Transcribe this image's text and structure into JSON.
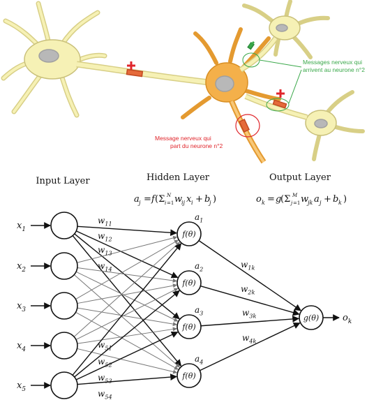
{
  "neuron_panel": {
    "annotation_green_line1": "Messages nerveux qui",
    "annotation_green_line2": "arrivent au neurone n°2",
    "annotation_red_line1": "Message nerveux qui",
    "annotation_red_line2": "part du neurone n°2",
    "colors": {
      "cell_fill": "#f6f1b5",
      "cell_stroke": "#c9c07a",
      "nucleus": "#b8b8b8",
      "soma2": "#f4b04a",
      "axon_band": "#e56a3a",
      "green": "#3aa84a",
      "red": "#e0252b"
    }
  },
  "network": {
    "layer_labels": {
      "input": "Input Layer",
      "hidden": "Hidden Layer",
      "output": "Output Layer"
    },
    "formulas": {
      "hidden": "a_j = f(Σ_{i=1}^{N} w_ij x_i + b_j)",
      "output": "o_k = g(Σ_{j=1}^{M} w_jk a_j + b_k)"
    },
    "inputs": [
      "x1",
      "x2",
      "x3",
      "x4",
      "x5"
    ],
    "hidden_nodes": [
      {
        "func": "f(θ)",
        "act": "a1"
      },
      {
        "func": "f(θ)",
        "act": "a2"
      },
      {
        "func": "f(θ)",
        "act": "a3"
      },
      {
        "func": "f(θ)",
        "act": "a4"
      }
    ],
    "output_node": {
      "func": "g(θ)",
      "label": "ok"
    },
    "input_weights_top": [
      "w11",
      "w12",
      "w13",
      "w14"
    ],
    "input_weights_bottom": [
      "w51",
      "w52",
      "w53",
      "w54"
    ],
    "hidden_weights": [
      "w1k",
      "w2k",
      "w3k",
      "w4k"
    ]
  }
}
